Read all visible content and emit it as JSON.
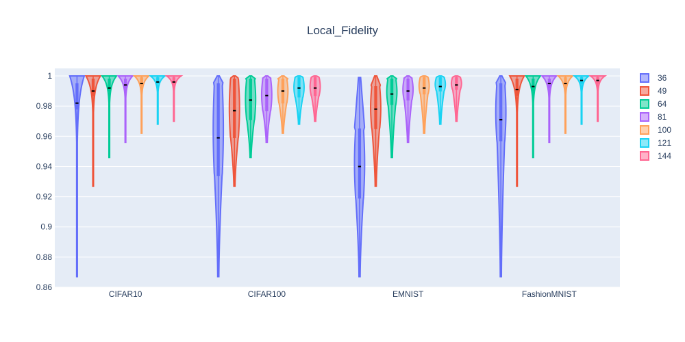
{
  "chart_data": {
    "type": "violin",
    "title": "Local_Fidelity",
    "xlabel": "",
    "ylabel": "",
    "categories": [
      "CIFAR10",
      "CIFAR100",
      "EMNIST",
      "FashionMNIST"
    ],
    "ylim": [
      0.86,
      1.005
    ],
    "yticks": [
      0.86,
      0.88,
      0.9,
      0.92,
      0.94,
      0.96,
      0.98,
      1
    ],
    "ytick_labels": [
      "0.86",
      "0.88",
      "0.9",
      "0.92",
      "0.94",
      "0.96",
      "0.98",
      "1"
    ],
    "grid": true,
    "legend_position": "right",
    "series": [
      {
        "name": "36",
        "color": "#636efa",
        "stats": [
          {
            "min": 0.867,
            "q1": 0.978,
            "median": 0.982,
            "q3": 0.995,
            "max": 1.0,
            "shape": "top"
          },
          {
            "min": 0.867,
            "q1": 0.934,
            "median": 0.959,
            "q3": 0.995,
            "max": 1.0,
            "shape": "flat"
          },
          {
            "min": 0.867,
            "q1": 0.919,
            "median": 0.94,
            "q3": 0.965,
            "max": 0.999,
            "shape": "flat"
          },
          {
            "min": 0.867,
            "q1": 0.957,
            "median": 0.971,
            "q3": 0.995,
            "max": 1.0,
            "shape": "flat"
          }
        ]
      },
      {
        "name": "49",
        "color": "#EF553B",
        "stats": [
          {
            "min": 0.927,
            "q1": 0.987,
            "median": 0.99,
            "q3": 0.998,
            "max": 1.0,
            "shape": "top"
          },
          {
            "min": 0.927,
            "q1": 0.959,
            "median": 0.977,
            "q3": 0.998,
            "max": 1.0,
            "shape": "flat"
          },
          {
            "min": 0.927,
            "q1": 0.965,
            "median": 0.978,
            "q3": 0.993,
            "max": 1.0,
            "shape": "flat"
          },
          {
            "min": 0.927,
            "q1": 0.987,
            "median": 0.991,
            "q3": 0.998,
            "max": 1.0,
            "shape": "top"
          }
        ]
      },
      {
        "name": "64",
        "color": "#00cc96",
        "stats": [
          {
            "min": 0.946,
            "q1": 0.99,
            "median": 0.992,
            "q3": 0.998,
            "max": 1.0,
            "shape": "top"
          },
          {
            "min": 0.946,
            "q1": 0.971,
            "median": 0.984,
            "q3": 0.998,
            "max": 1.0,
            "shape": "flat"
          },
          {
            "min": 0.946,
            "q1": 0.981,
            "median": 0.988,
            "q3": 0.998,
            "max": 1.0,
            "shape": "flat"
          },
          {
            "min": 0.946,
            "q1": 0.99,
            "median": 0.993,
            "q3": 0.998,
            "max": 1.0,
            "shape": "top"
          }
        ]
      },
      {
        "name": "81",
        "color": "#ab63fa",
        "stats": [
          {
            "min": 0.956,
            "q1": 0.992,
            "median": 0.994,
            "q3": 0.998,
            "max": 1.0,
            "shape": "top"
          },
          {
            "min": 0.956,
            "q1": 0.977,
            "median": 0.987,
            "q3": 0.998,
            "max": 1.0,
            "shape": "flat"
          },
          {
            "min": 0.956,
            "q1": 0.984,
            "median": 0.99,
            "q3": 0.998,
            "max": 1.0,
            "shape": "flat"
          },
          {
            "min": 0.956,
            "q1": 0.992,
            "median": 0.995,
            "q3": 0.998,
            "max": 1.0,
            "shape": "top"
          }
        ]
      },
      {
        "name": "100",
        "color": "#FFA15A",
        "stats": [
          {
            "min": 0.962,
            "q1": 0.994,
            "median": 0.995,
            "q3": 0.999,
            "max": 1.0,
            "shape": "top"
          },
          {
            "min": 0.962,
            "q1": 0.982,
            "median": 0.99,
            "q3": 0.998,
            "max": 1.0,
            "shape": "flat"
          },
          {
            "min": 0.962,
            "q1": 0.988,
            "median": 0.992,
            "q3": 0.999,
            "max": 1.0,
            "shape": "flat"
          },
          {
            "min": 0.962,
            "q1": 0.994,
            "median": 0.995,
            "q3": 0.999,
            "max": 1.0,
            "shape": "top"
          }
        ]
      },
      {
        "name": "121",
        "color": "#19d3f3",
        "stats": [
          {
            "min": 0.968,
            "q1": 0.995,
            "median": 0.996,
            "q3": 0.999,
            "max": 1.0,
            "shape": "top"
          },
          {
            "min": 0.968,
            "q1": 0.986,
            "median": 0.992,
            "q3": 0.999,
            "max": 1.0,
            "shape": "flat"
          },
          {
            "min": 0.968,
            "q1": 0.99,
            "median": 0.993,
            "q3": 0.999,
            "max": 1.0,
            "shape": "flat"
          },
          {
            "min": 0.968,
            "q1": 0.995,
            "median": 0.997,
            "q3": 0.999,
            "max": 1.0,
            "shape": "top"
          }
        ]
      },
      {
        "name": "144",
        "color": "#FF6692",
        "stats": [
          {
            "min": 0.97,
            "q1": 0.995,
            "median": 0.996,
            "q3": 0.999,
            "max": 1.0,
            "shape": "top"
          },
          {
            "min": 0.97,
            "q1": 0.987,
            "median": 0.992,
            "q3": 0.999,
            "max": 1.0,
            "shape": "flat"
          },
          {
            "min": 0.97,
            "q1": 0.991,
            "median": 0.994,
            "q3": 0.999,
            "max": 1.0,
            "shape": "flat"
          },
          {
            "min": 0.97,
            "q1": 0.995,
            "median": 0.997,
            "q3": 0.999,
            "max": 1.0,
            "shape": "top"
          }
        ]
      }
    ]
  }
}
